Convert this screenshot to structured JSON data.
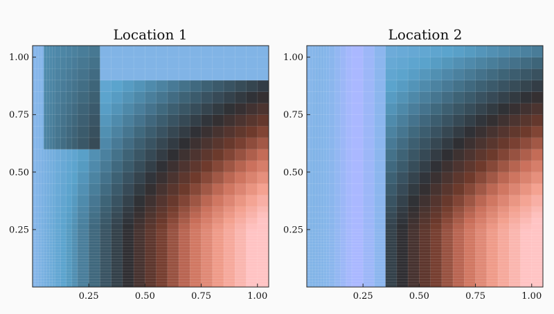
{
  "chart_data": [
    {
      "type": "heatmap",
      "title": "Location 1",
      "xlabel": "",
      "ylabel": "",
      "xlim": [
        0.0,
        1.05
      ],
      "ylim": [
        0.0,
        1.05
      ],
      "x_ticks": [
        0.25,
        0.5,
        0.75,
        1.0
      ],
      "x_tick_labels": [
        "0.25",
        "0.50",
        "0.75",
        "1.00"
      ],
      "y_ticks": [
        0.25,
        0.5,
        0.75,
        1.0
      ],
      "y_tick_labels": [
        "0.25",
        "0.50",
        "0.75",
        "1.00"
      ],
      "grid": true,
      "legend": "none",
      "colormap": [
        "#ffc4c4",
        "#f3a08e",
        "#c96f5a",
        "#6e3a2c",
        "#2f2f33",
        "#3e6478",
        "#5aa3cc",
        "#86b6ea",
        "#aab8ff"
      ],
      "x_bins": [
        0.0,
        0.0125,
        0.025,
        0.0375,
        0.05,
        0.0625,
        0.075,
        0.0875,
        0.1,
        0.125,
        0.15,
        0.175,
        0.2,
        0.25,
        0.3,
        0.35,
        0.4,
        0.45,
        0.5,
        0.55,
        0.6,
        0.65,
        0.7,
        0.75,
        0.8,
        0.85,
        0.9,
        0.95,
        1.0,
        1.05
      ],
      "y_bins": [
        0.0,
        0.0125,
        0.025,
        0.0375,
        0.05,
        0.0625,
        0.075,
        0.0875,
        0.1,
        0.1125,
        0.125,
        0.1375,
        0.15,
        0.1625,
        0.175,
        0.1875,
        0.2,
        0.2125,
        0.225,
        0.2375,
        0.25,
        0.275,
        0.3,
        0.325,
        0.35,
        0.4,
        0.45,
        0.5,
        0.55,
        0.6,
        0.65,
        0.7,
        0.75,
        0.8,
        0.85,
        0.9,
        0.95,
        1.0,
        1.05
      ]
    },
    {
      "type": "heatmap",
      "title": "Location 2",
      "xlabel": "",
      "ylabel": "",
      "xlim": [
        0.0,
        1.05
      ],
      "ylim": [
        0.0,
        1.05
      ],
      "x_ticks": [
        0.25,
        0.5,
        0.75,
        1.0
      ],
      "x_tick_labels": [
        "0.25",
        "0.50",
        "0.75",
        "1.00"
      ],
      "y_ticks": [
        0.25,
        0.5,
        0.75,
        1.0
      ],
      "y_tick_labels": [
        "0.25",
        "0.50",
        "0.75",
        "1.00"
      ],
      "grid": true,
      "legend": "none",
      "colormap": [
        "#ffc4c4",
        "#f3a08e",
        "#c96f5a",
        "#6e3a2c",
        "#2f2f33",
        "#3e6478",
        "#5aa3cc",
        "#86b6ea",
        "#aab8ff"
      ],
      "x_bins": [
        0.0,
        0.0125,
        0.025,
        0.0375,
        0.05,
        0.0625,
        0.075,
        0.0875,
        0.1,
        0.125,
        0.15,
        0.175,
        0.2,
        0.25,
        0.3,
        0.35,
        0.4,
        0.45,
        0.5,
        0.55,
        0.6,
        0.65,
        0.7,
        0.75,
        0.8,
        0.85,
        0.9,
        0.95,
        1.0,
        1.05
      ],
      "y_bins": [
        0.0,
        0.0125,
        0.025,
        0.0375,
        0.05,
        0.0625,
        0.075,
        0.0875,
        0.1,
        0.1125,
        0.125,
        0.1375,
        0.15,
        0.1625,
        0.175,
        0.1875,
        0.2,
        0.2125,
        0.225,
        0.2375,
        0.25,
        0.275,
        0.3,
        0.325,
        0.35,
        0.4,
        0.45,
        0.5,
        0.55,
        0.6,
        0.65,
        0.7,
        0.75,
        0.8,
        0.85,
        0.9,
        0.95,
        1.0,
        1.05
      ]
    }
  ]
}
